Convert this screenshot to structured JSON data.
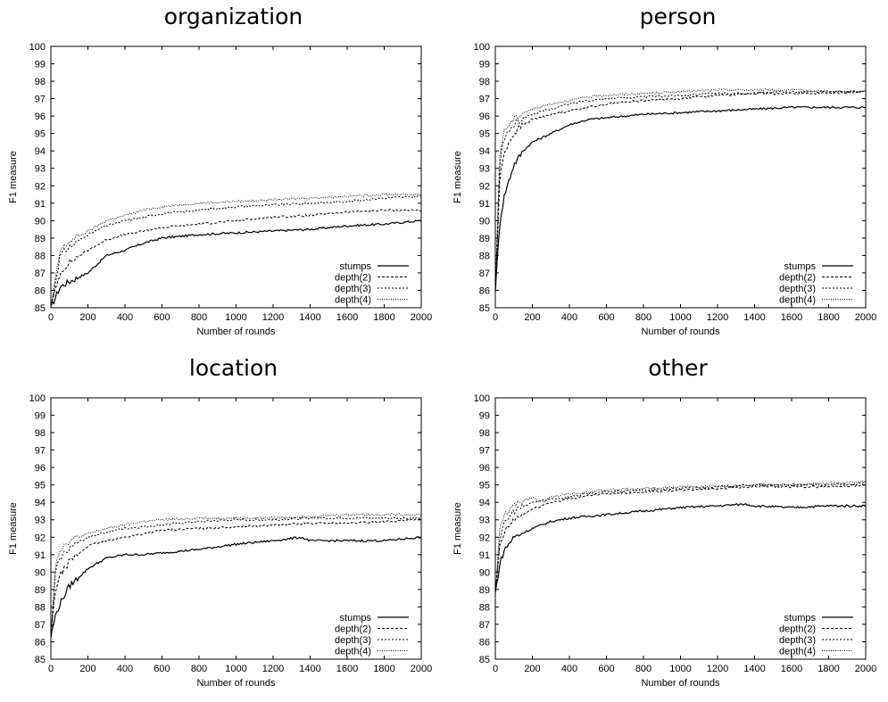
{
  "chart_data": [
    {
      "type": "line",
      "title": "organization",
      "xlabel": "Number of rounds",
      "ylabel": "F1 measure",
      "xlim": [
        0,
        2000
      ],
      "ylim": [
        85,
        100
      ],
      "xticks": [
        0,
        200,
        400,
        600,
        800,
        1000,
        1200,
        1400,
        1600,
        1800,
        2000
      ],
      "yticks": [
        85,
        86,
        87,
        88,
        89,
        90,
        91,
        92,
        93,
        94,
        95,
        96,
        97,
        98,
        99,
        100
      ],
      "legend_position": "bottom-right",
      "series": [
        {
          "name": "stumps",
          "x": [
            0,
            50,
            100,
            200,
            300,
            400,
            500,
            600,
            800,
            1000,
            1200,
            1400,
            1600,
            1800,
            2000
          ],
          "y": [
            85.0,
            86.2,
            86.5,
            87.0,
            88.0,
            88.3,
            88.7,
            89.0,
            89.2,
            89.3,
            89.4,
            89.5,
            89.7,
            89.8,
            90.0
          ]
        },
        {
          "name": "depth(2)",
          "x": [
            0,
            50,
            100,
            200,
            300,
            400,
            500,
            600,
            800,
            1000,
            1200,
            1400,
            1600,
            1800,
            2000
          ],
          "y": [
            85.0,
            87.0,
            87.6,
            88.3,
            88.9,
            89.2,
            89.4,
            89.6,
            89.8,
            90.0,
            90.2,
            90.3,
            90.5,
            90.6,
            90.6
          ]
        },
        {
          "name": "depth(3)",
          "x": [
            0,
            50,
            100,
            200,
            300,
            400,
            500,
            600,
            800,
            1000,
            1200,
            1400,
            1600,
            1800,
            2000
          ],
          "y": [
            85.0,
            88.0,
            88.5,
            89.2,
            89.7,
            90.0,
            90.2,
            90.4,
            90.6,
            90.8,
            90.9,
            91.0,
            91.1,
            91.3,
            91.4
          ]
        },
        {
          "name": "depth(4)",
          "x": [
            0,
            50,
            100,
            200,
            300,
            400,
            500,
            600,
            800,
            1000,
            1200,
            1400,
            1600,
            1800,
            2000
          ],
          "y": [
            85.0,
            88.3,
            88.8,
            89.4,
            90.0,
            90.3,
            90.6,
            90.8,
            91.0,
            91.1,
            91.2,
            91.3,
            91.4,
            91.5,
            91.5
          ]
        }
      ]
    },
    {
      "type": "line",
      "title": "person",
      "xlabel": "Number of rounds",
      "ylabel": "F1 measure",
      "xlim": [
        0,
        2000
      ],
      "ylim": [
        85,
        100
      ],
      "xticks": [
        0,
        200,
        400,
        600,
        800,
        1000,
        1200,
        1400,
        1600,
        1800,
        2000
      ],
      "yticks": [
        85,
        86,
        87,
        88,
        89,
        90,
        91,
        92,
        93,
        94,
        95,
        96,
        97,
        98,
        99,
        100
      ],
      "legend_position": "bottom-right",
      "series": [
        {
          "name": "stumps",
          "x": [
            0,
            25,
            50,
            100,
            150,
            200,
            300,
            400,
            500,
            600,
            800,
            1000,
            1200,
            1400,
            1600,
            1800,
            2000
          ],
          "y": [
            86.0,
            90.0,
            91.5,
            93.2,
            94.0,
            94.5,
            95.0,
            95.5,
            95.8,
            95.9,
            96.1,
            96.2,
            96.3,
            96.4,
            96.5,
            96.5,
            96.5
          ]
        },
        {
          "name": "depth(2)",
          "x": [
            0,
            25,
            50,
            100,
            150,
            200,
            300,
            400,
            500,
            600,
            800,
            1000,
            1200,
            1400,
            1600,
            1800,
            2000
          ],
          "y": [
            86.0,
            92.5,
            94.0,
            95.0,
            95.5,
            95.8,
            96.1,
            96.3,
            96.5,
            96.7,
            96.9,
            97.0,
            97.2,
            97.3,
            97.3,
            97.3,
            97.4
          ]
        },
        {
          "name": "depth(3)",
          "x": [
            0,
            25,
            50,
            100,
            150,
            200,
            300,
            400,
            500,
            600,
            800,
            1000,
            1200,
            1400,
            1600,
            1800,
            2000
          ],
          "y": [
            86.0,
            93.5,
            94.8,
            95.5,
            95.9,
            96.1,
            96.4,
            96.7,
            96.9,
            97.0,
            97.1,
            97.2,
            97.3,
            97.3,
            97.4,
            97.4,
            97.4
          ]
        },
        {
          "name": "depth(4)",
          "x": [
            0,
            25,
            50,
            100,
            150,
            200,
            300,
            400,
            500,
            600,
            800,
            1000,
            1200,
            1400,
            1600,
            1800,
            2000
          ],
          "y": [
            86.0,
            94.0,
            95.2,
            95.8,
            96.2,
            96.4,
            96.7,
            96.9,
            97.1,
            97.2,
            97.3,
            97.4,
            97.5,
            97.5,
            97.5,
            97.4,
            97.4
          ]
        }
      ]
    },
    {
      "type": "line",
      "title": "location",
      "xlabel": "Number of rounds",
      "ylabel": "F1 measure",
      "xlim": [
        0,
        2000
      ],
      "ylim": [
        85,
        100
      ],
      "xticks": [
        0,
        200,
        400,
        600,
        800,
        1000,
        1200,
        1400,
        1600,
        1800,
        2000
      ],
      "yticks": [
        85,
        86,
        87,
        88,
        89,
        90,
        91,
        92,
        93,
        94,
        95,
        96,
        97,
        98,
        99,
        100
      ],
      "legend_position": "bottom-right",
      "series": [
        {
          "name": "stumps",
          "x": [
            0,
            25,
            50,
            100,
            200,
            300,
            400,
            500,
            600,
            800,
            1000,
            1200,
            1350,
            1400,
            1600,
            1800,
            2000
          ],
          "y": [
            86.3,
            87.5,
            88.2,
            89.2,
            90.2,
            90.8,
            91.0,
            91.0,
            91.1,
            91.3,
            91.6,
            91.8,
            92.0,
            91.8,
            91.8,
            91.8,
            92.0
          ]
        },
        {
          "name": "depth(2)",
          "x": [
            0,
            25,
            50,
            100,
            200,
            300,
            400,
            500,
            600,
            800,
            1000,
            1200,
            1400,
            1600,
            1800,
            2000
          ],
          "y": [
            86.3,
            89.0,
            89.8,
            90.6,
            91.5,
            91.8,
            92.0,
            92.2,
            92.4,
            92.5,
            92.6,
            92.7,
            92.8,
            92.8,
            92.9,
            93.0
          ]
        },
        {
          "name": "depth(3)",
          "x": [
            0,
            25,
            50,
            100,
            200,
            300,
            400,
            500,
            600,
            800,
            1000,
            1200,
            1400,
            1600,
            1800,
            2000
          ],
          "y": [
            86.3,
            90.0,
            90.8,
            91.4,
            92.0,
            92.3,
            92.5,
            92.6,
            92.7,
            92.9,
            93.0,
            93.0,
            93.1,
            93.1,
            93.1,
            93.1
          ]
        },
        {
          "name": "depth(4)",
          "x": [
            0,
            25,
            50,
            100,
            200,
            300,
            400,
            500,
            600,
            800,
            1000,
            1200,
            1400,
            1600,
            1800,
            2000
          ],
          "y": [
            86.3,
            90.5,
            91.3,
            91.8,
            92.2,
            92.5,
            92.7,
            92.9,
            93.0,
            93.1,
            93.1,
            93.1,
            93.2,
            93.3,
            93.3,
            93.3
          ]
        }
      ]
    },
    {
      "type": "line",
      "title": "other",
      "xlabel": "Number of rounds",
      "ylabel": "F1 measure",
      "xlim": [
        0,
        2000
      ],
      "ylim": [
        85,
        100
      ],
      "xticks": [
        0,
        200,
        400,
        600,
        800,
        1000,
        1200,
        1400,
        1600,
        1800,
        2000
      ],
      "yticks": [
        85,
        86,
        87,
        88,
        89,
        90,
        91,
        92,
        93,
        94,
        95,
        96,
        97,
        98,
        99,
        100
      ],
      "legend_position": "bottom-right",
      "series": [
        {
          "name": "stumps",
          "x": [
            0,
            25,
            50,
            100,
            200,
            300,
            400,
            500,
            600,
            800,
            1000,
            1200,
            1350,
            1400,
            1600,
            1800,
            2000
          ],
          "y": [
            88.8,
            90.5,
            91.3,
            92.0,
            92.5,
            92.9,
            93.1,
            93.2,
            93.3,
            93.5,
            93.7,
            93.8,
            93.9,
            93.8,
            93.7,
            93.8,
            93.8
          ]
        },
        {
          "name": "depth(2)",
          "x": [
            0,
            25,
            50,
            100,
            200,
            300,
            400,
            500,
            600,
            800,
            1000,
            1200,
            1400,
            1600,
            1800,
            2000
          ],
          "y": [
            88.8,
            91.5,
            92.3,
            93.0,
            93.6,
            94.0,
            94.2,
            94.4,
            94.5,
            94.6,
            94.7,
            94.8,
            94.9,
            94.9,
            94.9,
            95.0
          ]
        },
        {
          "name": "depth(3)",
          "x": [
            0,
            25,
            50,
            100,
            200,
            300,
            400,
            500,
            600,
            800,
            1000,
            1200,
            1400,
            1600,
            1800,
            2000
          ],
          "y": [
            88.8,
            92.0,
            92.8,
            93.5,
            94.0,
            94.2,
            94.3,
            94.5,
            94.6,
            94.7,
            94.8,
            94.9,
            95.0,
            95.0,
            95.0,
            95.1
          ]
        },
        {
          "name": "depth(4)",
          "x": [
            0,
            25,
            50,
            100,
            150,
            200,
            250,
            300,
            400,
            500,
            600,
            800,
            1000,
            1200,
            1400,
            1600,
            1800,
            2000
          ],
          "y": [
            88.8,
            92.5,
            93.3,
            93.8,
            94.1,
            94.3,
            94.0,
            94.3,
            94.5,
            94.6,
            94.7,
            94.8,
            94.9,
            94.9,
            95.0,
            95.0,
            95.1,
            95.2
          ]
        }
      ]
    }
  ]
}
